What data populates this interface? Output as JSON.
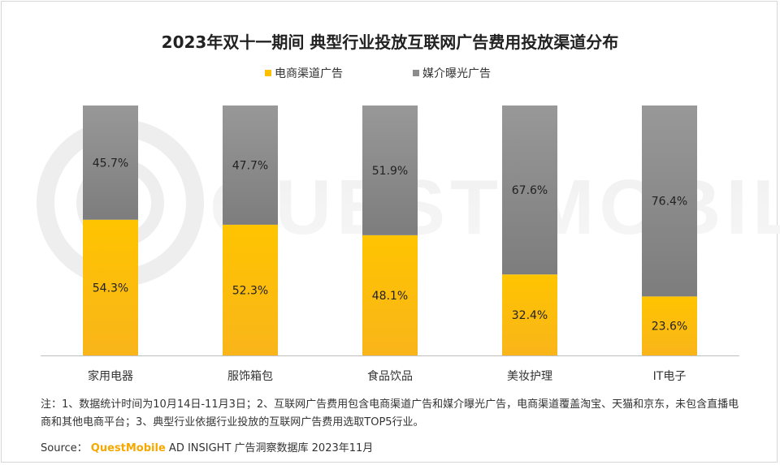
{
  "colors": {
    "ecommerce": "#ffc000",
    "exposure": "#8c8c8c",
    "brand": "#f5a800"
  },
  "chart_data": {
    "type": "bar",
    "stacked": true,
    "title": "2023年双十一期间 典型行业投放互联网广告费用投放渠道分布",
    "categories": [
      "家用电器",
      "服饰箱包",
      "食品饮品",
      "美妆护理",
      "IT电子"
    ],
    "series": [
      {
        "name": "电商渠道广告",
        "values": [
          54.3,
          52.3,
          48.1,
          32.4,
          23.6
        ],
        "labels": [
          "54.3%",
          "52.3%",
          "48.1%",
          "32.4%",
          "23.6%"
        ]
      },
      {
        "name": "媒介曝光广告",
        "values": [
          45.7,
          47.7,
          51.9,
          67.6,
          76.4
        ],
        "labels": [
          "45.7%",
          "47.7%",
          "51.9%",
          "67.6%",
          "76.4%"
        ]
      }
    ],
    "ylim": [
      0,
      100
    ],
    "legend": "top-center",
    "grid": false
  },
  "watermark": "QUEST MOBILE",
  "note": "注：1、数据统计时间为10月14日-11月3日；2、互联网广告费用包含电商渠道广告和媒介曝光广告，电商渠道覆盖淘宝、天猫和京东，未包含直播电商和其他电商平台；3、典型行业依据行业投放的互联网广告费用选取TOP5行业。",
  "source": {
    "label": "Source：",
    "brand": "QuestMobile",
    "text": "AD INSIGHT 广告洞察数据库 2023年11月"
  }
}
